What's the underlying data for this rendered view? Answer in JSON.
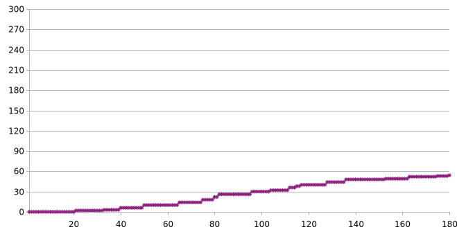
{
  "chart_data": {
    "type": "line",
    "title": "",
    "xlabel": "",
    "ylabel": "",
    "xlim": [
      1,
      180
    ],
    "ylim": [
      0,
      300
    ],
    "x_ticks": [
      20,
      40,
      60,
      80,
      100,
      120,
      140,
      160,
      180
    ],
    "y_ticks": [
      0,
      30,
      60,
      90,
      120,
      150,
      180,
      210,
      240,
      270,
      300
    ],
    "grid": "horizontal",
    "legend": "none",
    "series_color": "#8b1f7d",
    "marker": "asterisk",
    "series": [
      {
        "steps": [
          {
            "from": 1,
            "y": 0
          },
          {
            "from": 21,
            "y": 2
          },
          {
            "from": 33,
            "y": 3
          },
          {
            "from": 40,
            "y": 6
          },
          {
            "from": 50,
            "y": 10
          },
          {
            "from": 65,
            "y": 14
          },
          {
            "from": 75,
            "y": 18
          },
          {
            "from": 80,
            "y": 22
          },
          {
            "from": 82,
            "y": 26
          },
          {
            "from": 96,
            "y": 30
          },
          {
            "from": 104,
            "y": 32
          },
          {
            "from": 112,
            "y": 36
          },
          {
            "from": 115,
            "y": 38
          },
          {
            "from": 117,
            "y": 40
          },
          {
            "from": 128,
            "y": 44
          },
          {
            "from": 136,
            "y": 48
          },
          {
            "from": 153,
            "y": 49
          },
          {
            "from": 163,
            "y": 52
          },
          {
            "from": 175,
            "y": 53
          },
          {
            "from": 180,
            "y": 54
          }
        ],
        "x_end": 180
      }
    ]
  }
}
